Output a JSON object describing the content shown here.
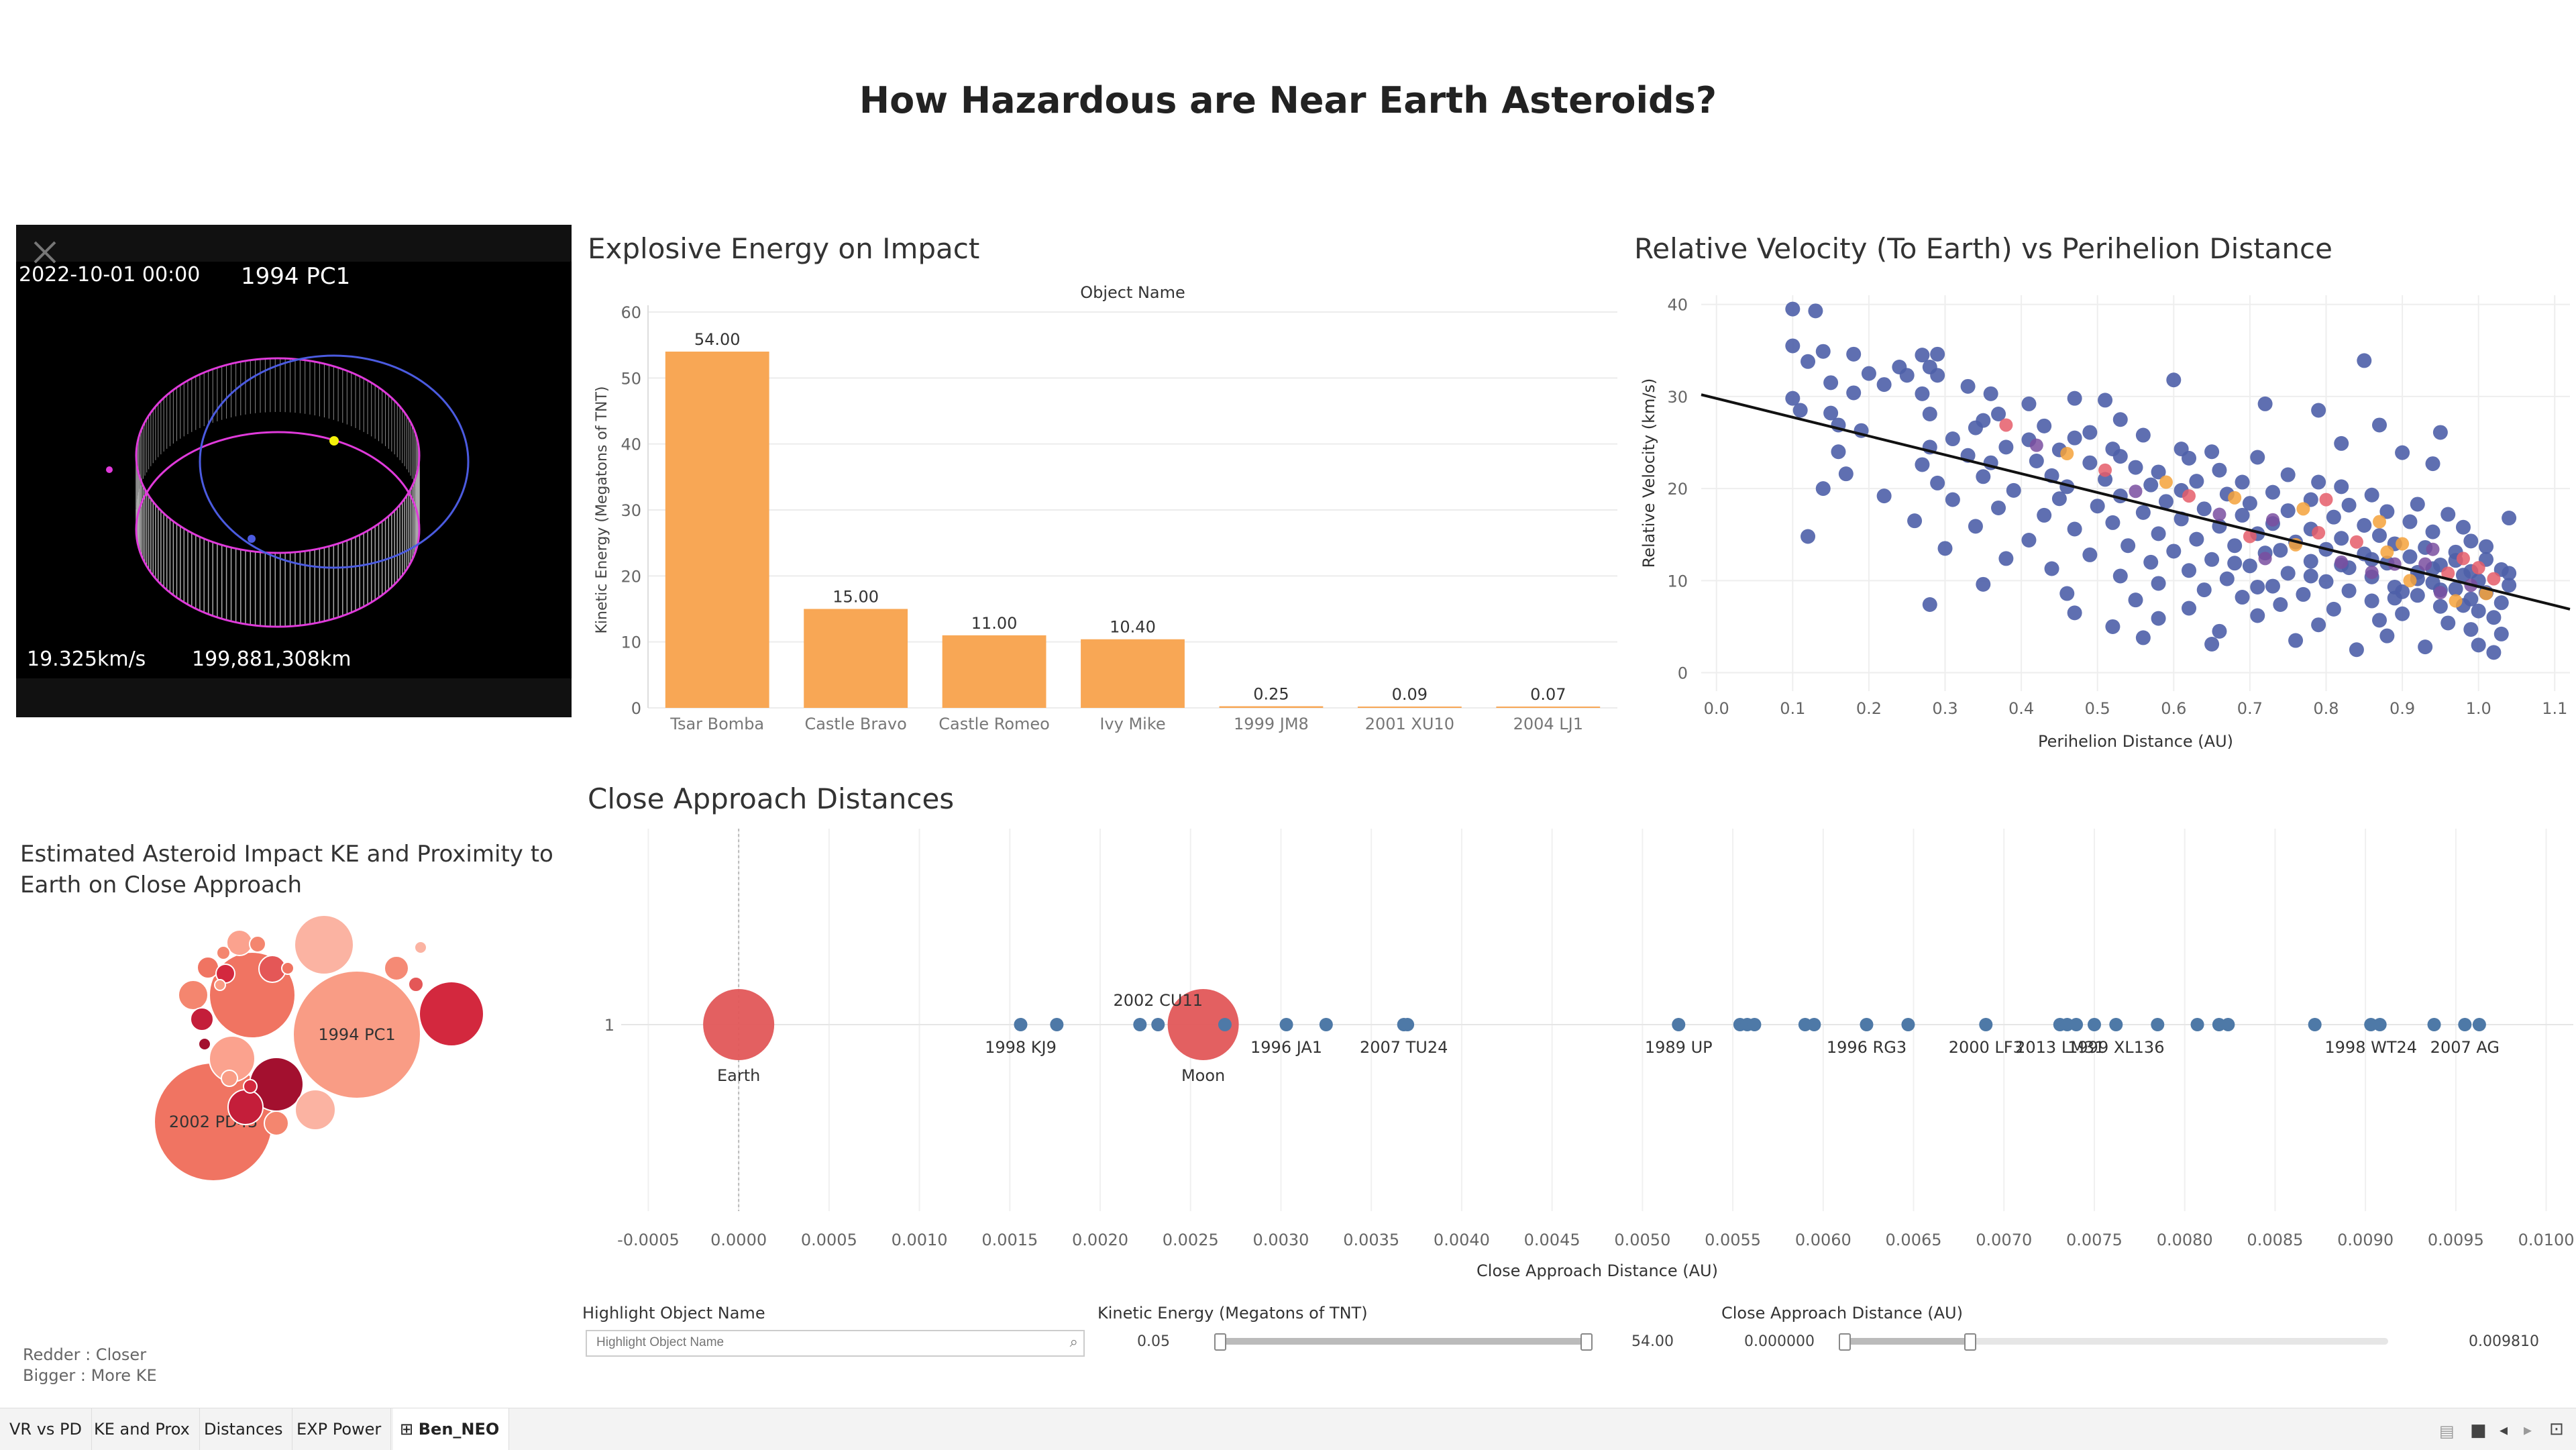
{
  "dashboard": {
    "title": "How Hazardous are Near Earth Asteroids?",
    "tabs": [
      "VR vs PD",
      "KE and Prox",
      "Distances",
      "EXP Power",
      "Ben_NEO"
    ],
    "active_tab": "Ben_NEO"
  },
  "orbit": {
    "datetime": "2022-10-01 00:00",
    "object_name": "1994 PC1",
    "velocity": "19.325km/s",
    "distance": "199,881,308km"
  },
  "energy_chart": {
    "sheet_title": "Explosive Energy on Impact"
  },
  "velocity_chart": {
    "sheet_title": "Relative Velocity (To Earth) vs Perihelion Distance"
  },
  "bubble_chart": {
    "sheet_title": "Estimated Asteroid Impact KE and Proximity to Earth on Close Approach",
    "labels": [
      "1994 PC1",
      "2002 PD43"
    ],
    "legend_redder": "Redder  : Closer",
    "legend_bigger": "Bigger   : More KE"
  },
  "approach_chart": {
    "sheet_title": "Close Approach Distances"
  },
  "controls": {
    "highlight": {
      "label": "Highlight Object Name",
      "placeholder": "Highlight Object Name"
    },
    "ke_filter": {
      "label": "Kinetic Energy (Megatons of TNT)",
      "min": "0.05",
      "max": "54.00"
    },
    "cad_filter": {
      "label": "Close Approach Distance (AU)",
      "min": "0.000000",
      "max": "0.009810"
    }
  },
  "chart_data": [
    {
      "type": "bar",
      "title": "Explosive Energy on Impact",
      "column_header": "Object Name",
      "xlabel": "",
      "ylabel": "Kinetic Energy (Megatons of TNT)",
      "ylim": [
        0,
        60
      ],
      "yticks": [
        "0",
        "10",
        "20",
        "30",
        "40",
        "50",
        "60"
      ],
      "categories": [
        "Tsar Bomba",
        "Castle Bravo",
        "Castle Romeo",
        "Ivy Mike",
        "1999 JM8",
        "2001 XU10",
        "2004 LJ1"
      ],
      "values": [
        54.0,
        15.0,
        11.0,
        10.4,
        0.25,
        0.09,
        0.07
      ],
      "data_labels": [
        "54.00",
        "15.00",
        "11.00",
        "10.40",
        "0.25",
        "0.09",
        "0.07"
      ],
      "color": "#F8A755",
      "grid": true
    },
    {
      "type": "scatter",
      "title": "Relative Velocity (To Earth) vs Perihelion Distance",
      "xlabel": "Perihelion Distance (AU)",
      "ylabel": "Relative Velocity (km/s)",
      "xlim": [
        -0.02,
        1.12
      ],
      "ylim": [
        -2,
        41
      ],
      "xticks": [
        "0.0",
        "0.1",
        "0.2",
        "0.3",
        "0.4",
        "0.5",
        "0.6",
        "0.7",
        "0.8",
        "0.9",
        "1.0",
        "1.1"
      ],
      "yticks": [
        "0",
        "10",
        "20",
        "30",
        "40"
      ],
      "trend_line": {
        "x": [
          -0.02,
          1.12
        ],
        "y": [
          30.2,
          6.9
        ]
      },
      "points": [
        [
          0.1,
          39.5
        ],
        [
          0.13,
          39.3
        ],
        [
          0.1,
          35.5
        ],
        [
          0.14,
          34.9
        ],
        [
          0.12,
          33.8
        ],
        [
          0.18,
          34.6
        ],
        [
          0.27,
          34.5
        ],
        [
          0.29,
          34.6
        ],
        [
          0.28,
          33.2
        ],
        [
          0.24,
          33.2
        ],
        [
          0.2,
          32.5
        ],
        [
          0.25,
          32.3
        ],
        [
          0.29,
          32.3
        ],
        [
          0.15,
          31.5
        ],
        [
          0.22,
          31.3
        ],
        [
          0.33,
          31.1
        ],
        [
          0.36,
          30.3
        ],
        [
          0.27,
          30.3
        ],
        [
          0.18,
          30.4
        ],
        [
          0.1,
          29.8
        ],
        [
          0.47,
          29.8
        ],
        [
          0.51,
          29.6
        ],
        [
          0.41,
          29.2
        ],
        [
          0.28,
          28.1
        ],
        [
          0.11,
          28.5
        ],
        [
          0.15,
          28.2
        ],
        [
          0.37,
          28.1
        ],
        [
          0.53,
          27.5
        ],
        [
          0.35,
          27.4
        ],
        [
          0.16,
          26.9
        ],
        [
          0.43,
          26.8
        ],
        [
          0.34,
          26.6
        ],
        [
          0.19,
          26.3
        ],
        [
          0.49,
          26.1
        ],
        [
          0.56,
          25.8
        ],
        [
          0.47,
          25.5
        ],
        [
          0.31,
          25.4
        ],
        [
          0.41,
          25.3
        ],
        [
          0.28,
          24.5
        ],
        [
          0.38,
          24.5
        ],
        [
          0.52,
          24.3
        ],
        [
          0.61,
          24.3
        ],
        [
          0.45,
          24.2
        ],
        [
          0.65,
          24.0
        ],
        [
          0.16,
          24.0
        ],
        [
          0.33,
          23.6
        ],
        [
          0.53,
          23.5
        ],
        [
          0.71,
          23.4
        ],
        [
          0.62,
          23.3
        ],
        [
          0.42,
          23.0
        ],
        [
          0.36,
          22.8
        ],
        [
          0.49,
          22.8
        ],
        [
          0.27,
          22.6
        ],
        [
          0.55,
          22.3
        ],
        [
          0.66,
          22.0
        ],
        [
          0.58,
          21.8
        ],
        [
          0.75,
          21.5
        ],
        [
          0.44,
          21.4
        ],
        [
          0.35,
          21.3
        ],
        [
          0.17,
          21.6
        ],
        [
          0.51,
          21.0
        ],
        [
          0.63,
          20.8
        ],
        [
          0.69,
          20.7
        ],
        [
          0.79,
          20.7
        ],
        [
          0.29,
          20.6
        ],
        [
          0.57,
          20.4
        ],
        [
          0.46,
          20.2
        ],
        [
          0.82,
          20.2
        ],
        [
          0.14,
          20.0
        ],
        [
          0.39,
          19.8
        ],
        [
          0.61,
          19.8
        ],
        [
          0.73,
          19.6
        ],
        [
          0.67,
          19.4
        ],
        [
          0.86,
          19.3
        ],
        [
          0.53,
          19.2
        ],
        [
          0.22,
          19.2
        ],
        [
          0.45,
          18.9
        ],
        [
          0.78,
          18.8
        ],
        [
          0.31,
          18.8
        ],
        [
          0.59,
          18.6
        ],
        [
          0.7,
          18.4
        ],
        [
          0.92,
          18.3
        ],
        [
          0.83,
          18.2
        ],
        [
          0.5,
          18.1
        ],
        [
          0.64,
          17.8
        ],
        [
          0.37,
          17.9
        ],
        [
          0.75,
          17.6
        ],
        [
          0.88,
          17.5
        ],
        [
          0.56,
          17.4
        ],
        [
          0.96,
          17.2
        ],
        [
          0.69,
          17.1
        ],
        [
          0.43,
          17.1
        ],
        [
          0.81,
          16.9
        ],
        [
          0.61,
          16.7
        ],
        [
          1.04,
          16.8
        ],
        [
          0.26,
          16.5
        ],
        [
          0.91,
          16.4
        ],
        [
          0.52,
          16.3
        ],
        [
          0.73,
          16.2
        ],
        [
          0.85,
          16.0
        ],
        [
          0.34,
          15.9
        ],
        [
          0.66,
          15.9
        ],
        [
          0.98,
          15.8
        ],
        [
          0.78,
          15.6
        ],
        [
          0.47,
          15.6
        ],
        [
          0.94,
          15.3
        ],
        [
          0.58,
          15.1
        ],
        [
          0.71,
          15.1
        ],
        [
          0.87,
          14.9
        ],
        [
          0.12,
          14.8
        ],
        [
          0.82,
          14.6
        ],
        [
          0.63,
          14.5
        ],
        [
          0.41,
          14.4
        ],
        [
          0.99,
          14.3
        ],
        [
          0.76,
          14.2
        ],
        [
          0.89,
          14.0
        ],
        [
          0.54,
          13.8
        ],
        [
          0.68,
          13.8
        ],
        [
          0.93,
          13.6
        ],
        [
          0.3,
          13.5
        ],
        [
          0.8,
          13.4
        ],
        [
          0.6,
          13.2
        ],
        [
          0.97,
          13.1
        ],
        [
          0.72,
          13.0
        ],
        [
          0.85,
          12.9
        ],
        [
          0.49,
          12.8
        ],
        [
          0.91,
          12.6
        ],
        [
          0.38,
          12.4
        ],
        [
          1.01,
          12.3
        ],
        [
          0.65,
          12.3
        ],
        [
          0.78,
          12.1
        ],
        [
          0.57,
          12.0
        ],
        [
          0.88,
          11.9
        ],
        [
          0.95,
          11.7
        ],
        [
          0.7,
          11.6
        ],
        [
          0.83,
          11.4
        ],
        [
          0.44,
          11.3
        ],
        [
          1.03,
          11.2
        ],
        [
          0.62,
          11.1
        ],
        [
          0.92,
          10.9
        ],
        [
          0.75,
          10.8
        ],
        [
          0.98,
          10.6
        ],
        [
          0.53,
          10.5
        ],
        [
          0.86,
          10.4
        ],
        [
          0.67,
          10.2
        ],
        [
          1.0,
          10.0
        ],
        [
          0.8,
          9.9
        ],
        [
          0.94,
          9.8
        ],
        [
          0.58,
          9.7
        ],
        [
          0.35,
          9.6
        ],
        [
          1.04,
          9.5
        ],
        [
          0.73,
          9.4
        ],
        [
          0.89,
          9.3
        ],
        [
          0.97,
          9.1
        ],
        [
          0.64,
          9.0
        ],
        [
          0.83,
          8.9
        ],
        [
          1.01,
          8.7
        ],
        [
          0.46,
          8.6
        ],
        [
          0.77,
          8.5
        ],
        [
          0.92,
          8.4
        ],
        [
          0.69,
          8.2
        ],
        [
          0.99,
          8.0
        ],
        [
          0.55,
          7.9
        ],
        [
          0.86,
          7.8
        ],
        [
          1.03,
          7.6
        ],
        [
          0.28,
          7.4
        ],
        [
          0.74,
          7.4
        ],
        [
          0.95,
          7.2
        ],
        [
          0.62,
          7.0
        ],
        [
          0.81,
          6.9
        ],
        [
          1.0,
          6.7
        ],
        [
          0.47,
          6.5
        ],
        [
          0.9,
          6.4
        ],
        [
          0.71,
          6.2
        ],
        [
          1.02,
          6.0
        ],
        [
          0.58,
          5.9
        ],
        [
          0.87,
          5.7
        ],
        [
          0.96,
          5.4
        ],
        [
          0.79,
          5.2
        ],
        [
          0.52,
          5.0
        ],
        [
          0.99,
          4.7
        ],
        [
          0.66,
          4.5
        ],
        [
          1.03,
          4.2
        ],
        [
          0.88,
          4.0
        ],
        [
          0.56,
          3.8
        ],
        [
          0.76,
          3.5
        ],
        [
          1.0,
          3.0
        ],
        [
          0.93,
          2.8
        ],
        [
          0.65,
          3.1
        ],
        [
          0.84,
          2.5
        ],
        [
          1.02,
          2.2
        ],
        [
          0.9,
          8.8
        ],
        [
          0.94,
          11.3
        ],
        [
          0.97,
          12.2
        ],
        [
          1.01,
          13.7
        ],
        [
          0.98,
          7.3
        ],
        [
          0.95,
          9.0
        ],
        [
          0.92,
          10.2
        ],
        [
          0.99,
          11.0
        ],
        [
          1.04,
          10.8
        ],
        [
          0.86,
          12.3
        ],
        [
          0.89,
          8.1
        ],
        [
          0.82,
          11.7
        ],
        [
          0.78,
          10.5
        ],
        [
          0.74,
          13.3
        ],
        [
          0.71,
          9.3
        ],
        [
          0.68,
          11.9
        ],
        [
          0.85,
          33.9
        ],
        [
          0.79,
          28.5
        ],
        [
          0.72,
          29.2
        ],
        [
          0.87,
          26.9
        ],
        [
          0.6,
          31.8
        ],
        [
          0.82,
          24.9
        ],
        [
          0.94,
          22.7
        ],
        [
          0.95,
          26.1
        ],
        [
          0.9,
          23.9
        ]
      ],
      "hot_points": [
        [
          0.99,
          9.5
        ],
        [
          0.96,
          10.8
        ],
        [
          1.01,
          8.6
        ],
        [
          0.93,
          11.8
        ],
        [
          0.98,
          12.4
        ],
        [
          0.91,
          10.0
        ],
        [
          0.95,
          8.7
        ],
        [
          1.02,
          10.2
        ],
        [
          0.88,
          13.1
        ],
        [
          0.86,
          10.9
        ],
        [
          0.84,
          14.2
        ],
        [
          0.97,
          7.8
        ],
        [
          0.82,
          12.0
        ],
        [
          0.79,
          15.2
        ],
        [
          0.9,
          14.0
        ],
        [
          0.94,
          13.4
        ],
        [
          1.0,
          11.4
        ],
        [
          0.76,
          13.9
        ],
        [
          0.73,
          16.6
        ],
        [
          0.7,
          14.8
        ],
        [
          0.77,
          17.8
        ],
        [
          0.66,
          17.2
        ],
        [
          0.62,
          19.2
        ],
        [
          0.59,
          20.7
        ],
        [
          0.55,
          19.7
        ],
        [
          0.51,
          22.0
        ],
        [
          0.46,
          23.8
        ],
        [
          0.42,
          24.7
        ],
        [
          0.38,
          26.9
        ],
        [
          0.68,
          19.0
        ],
        [
          0.72,
          12.4
        ],
        [
          0.8,
          18.8
        ],
        [
          0.87,
          16.4
        ],
        [
          0.89,
          11.8
        ]
      ],
      "color": "#4E5FA8",
      "heat_colors": [
        "#7A4FA0",
        "#E55D6A",
        "#F4A23B"
      ],
      "grid": true
    },
    {
      "type": "scatter",
      "title": "Close Approach Distances",
      "xlabel": "Close Approach Distance (AU)",
      "ylabel": "",
      "xlim": [
        -0.00065,
        0.01015
      ],
      "xticks": [
        "-0.0005",
        "0.0000",
        "0.0005",
        "0.0010",
        "0.0015",
        "0.0020",
        "0.0025",
        "0.0030",
        "0.0035",
        "0.0040",
        "0.0045",
        "0.0050",
        "0.0055",
        "0.0060",
        "0.0065",
        "0.0070",
        "0.0075",
        "0.0080",
        "0.0085",
        "0.0090",
        "0.0095",
        "0.0100"
      ],
      "yticks": [
        "1"
      ],
      "bodies": [
        {
          "name": "Earth",
          "x": 0.0,
          "color": "#E15759"
        },
        {
          "name": "Moon",
          "x": 0.00257,
          "color": "#E15759"
        }
      ],
      "objects": [
        {
          "name": "1998 KJ9",
          "x": 0.00156
        },
        {
          "name": "",
          "x": 0.00176
        },
        {
          "name": "",
          "x": 0.00222
        },
        {
          "name": "2002 CU11",
          "x": 0.00232
        },
        {
          "name": "",
          "x": 0.00269
        },
        {
          "name": "1996 JA1",
          "x": 0.00303
        },
        {
          "name": "",
          "x": 0.00325
        },
        {
          "name": "2007 TU24",
          "x": 0.00368
        },
        {
          "name": "",
          "x": 0.0037
        },
        {
          "name": "1989 UP",
          "x": 0.0052
        },
        {
          "name": "",
          "x": 0.00554
        },
        {
          "name": "",
          "x": 0.00558
        },
        {
          "name": "",
          "x": 0.00562
        },
        {
          "name": "",
          "x": 0.0059
        },
        {
          "name": "",
          "x": 0.00595
        },
        {
          "name": "1996 RG3",
          "x": 0.00624
        },
        {
          "name": "",
          "x": 0.00647
        },
        {
          "name": "2000 LF3",
          "x": 0.0069
        },
        {
          "name": "2013 LM31",
          "x": 0.00731
        },
        {
          "name": "",
          "x": 0.00735
        },
        {
          "name": "",
          "x": 0.0074
        },
        {
          "name": "",
          "x": 0.0075
        },
        {
          "name": "1999 XL136",
          "x": 0.00762
        },
        {
          "name": "",
          "x": 0.00785
        },
        {
          "name": "",
          "x": 0.00807
        },
        {
          "name": "",
          "x": 0.00819
        },
        {
          "name": "",
          "x": 0.00824
        },
        {
          "name": "",
          "x": 0.00872
        },
        {
          "name": "1998 WT24",
          "x": 0.00903
        },
        {
          "name": "",
          "x": 0.00908
        },
        {
          "name": "",
          "x": 0.00938
        },
        {
          "name": "2007 AG",
          "x": 0.00955
        },
        {
          "name": "",
          "x": 0.00963
        }
      ],
      "color": "#4E79A7",
      "grid": true
    }
  ]
}
